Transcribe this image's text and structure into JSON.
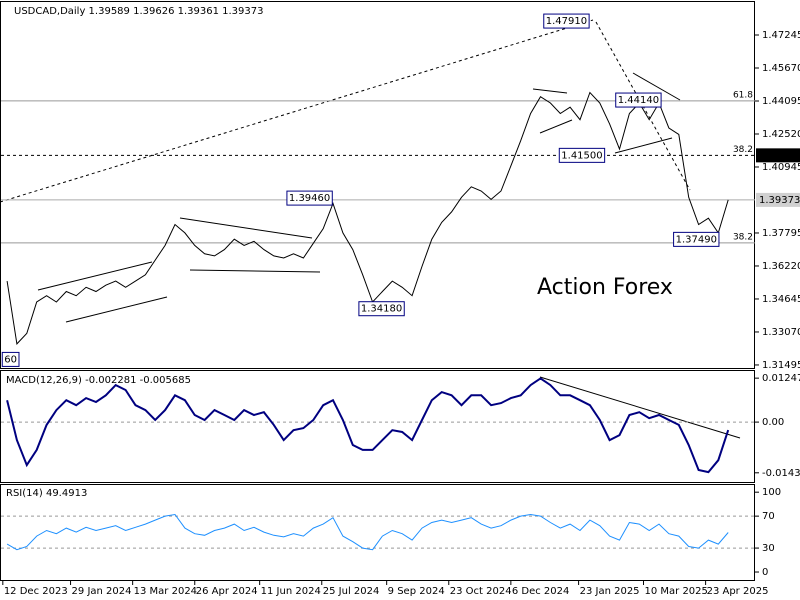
{
  "chart_data": [
    {
      "type": "line",
      "title": "USDCAD,Daily 1.39589 1.39626 1.39361 1.39373",
      "watermark": "Action Forex",
      "color": "#000000",
      "x": [
        "2023-12-15",
        "2023-12-22",
        "2023-12-29",
        "2024-01-05",
        "2024-01-12",
        "2024-01-19",
        "2024-01-26",
        "2024-02-02",
        "2024-02-09",
        "2024-02-16",
        "2024-02-23",
        "2024-03-01",
        "2024-03-08",
        "2024-03-15",
        "2024-03-22",
        "2024-03-29",
        "2024-04-05",
        "2024-04-12",
        "2024-04-19",
        "2024-04-26",
        "2024-05-03",
        "2024-05-10",
        "2024-05-17",
        "2024-05-24",
        "2024-05-31",
        "2024-06-07",
        "2024-06-14",
        "2024-06-21",
        "2024-06-28",
        "2024-07-05",
        "2024-07-12",
        "2024-07-19",
        "2024-07-26",
        "2024-08-02",
        "2024-08-09",
        "2024-08-16",
        "2024-08-23",
        "2024-08-30",
        "2024-09-06",
        "2024-09-13",
        "2024-09-20",
        "2024-09-27",
        "2024-10-04",
        "2024-10-11",
        "2024-10-18",
        "2024-10-25",
        "2024-11-01",
        "2024-11-08",
        "2024-11-15",
        "2024-11-22",
        "2024-11-29",
        "2024-12-06",
        "2024-12-13",
        "2024-12-20",
        "2024-12-27",
        "2025-01-03",
        "2025-01-10",
        "2025-01-17",
        "2025-01-24",
        "2025-01-31",
        "2025-02-07",
        "2025-02-14",
        "2025-02-21",
        "2025-02-28",
        "2025-03-07",
        "2025-03-14",
        "2025-03-21",
        "2025-03-28",
        "2025-04-04",
        "2025-04-11",
        "2025-04-18",
        "2025-04-25",
        "2025-05-02",
        "2025-05-09"
      ],
      "values": [
        1.355,
        1.325,
        1.33,
        1.345,
        1.348,
        1.345,
        1.35,
        1.348,
        1.352,
        1.35,
        1.353,
        1.355,
        1.352,
        1.355,
        1.358,
        1.365,
        1.372,
        1.382,
        1.378,
        1.372,
        1.368,
        1.367,
        1.37,
        1.375,
        1.372,
        1.374,
        1.37,
        1.367,
        1.366,
        1.368,
        1.366,
        1.373,
        1.38,
        1.392,
        1.378,
        1.37,
        1.358,
        1.345,
        1.35,
        1.355,
        1.352,
        1.348,
        1.362,
        1.375,
        1.383,
        1.388,
        1.395,
        1.4,
        1.398,
        1.394,
        1.398,
        1.41,
        1.422,
        1.435,
        1.443,
        1.44,
        1.435,
        1.438,
        1.432,
        1.445,
        1.44,
        1.43,
        1.418,
        1.435,
        1.44,
        1.432,
        1.44,
        1.428,
        1.425,
        1.395,
        1.382,
        1.385,
        1.378,
        1.39373
      ],
      "xlim": [
        "2023-12-10",
        "2025-05-28"
      ],
      "xticks": [
        {
          "value": "2023-12-12",
          "label": "12 Dec 2023"
        },
        {
          "value": "2024-01-29",
          "label": "29 Jan 2024"
        },
        {
          "value": "2024-03-13",
          "label": "13 Mar 2024"
        },
        {
          "value": "2024-04-26",
          "label": "26 Apr 2024"
        },
        {
          "value": "2024-06-11",
          "label": "11 Jun 2024"
        },
        {
          "value": "2024-07-25",
          "label": "25 Jul 2024"
        },
        {
          "value": "2024-09-09",
          "label": "9 Sep 2024"
        },
        {
          "value": "2024-10-23",
          "label": "23 Oct 2024"
        },
        {
          "value": "2024-12-06",
          "label": "6 Dec 2024"
        },
        {
          "value": "2025-01-23",
          "label": "23 Jan 2025"
        },
        {
          "value": "2025-03-10",
          "label": "10 Mar 2025"
        },
        {
          "value": "2025-04-23",
          "label": "23 Apr 2025"
        }
      ],
      "ylim": [
        1.3135,
        1.4882
      ],
      "yticks": [
        1.47245,
        {
          "value": 1.4567,
          "label": "1.45670"
        },
        1.44095,
        {
          "value": 1.4252,
          "label": "1.42520"
        },
        1.40945,
        1.37795,
        {
          "value": 1.3622,
          "label": "1.36220"
        },
        1.34645,
        {
          "value": 1.3307,
          "label": "1.33070"
        },
        1.31495
      ],
      "annotations": [
        {
          "label": "1.47910",
          "value": 1.4791,
          "x": "2025-02-03"
        },
        {
          "label": "1.41500",
          "value": 1.415,
          "x": "2025-02-14"
        },
        {
          "label": "1.44140",
          "value": 1.4414,
          "x": "2025-03-26"
        },
        {
          "label": "1.39460",
          "value": 1.3946,
          "x": "2024-08-05"
        },
        {
          "label": "1.34180",
          "value": 1.3418,
          "x": "2024-09-25"
        },
        {
          "label": "1.37490",
          "value": 1.3749,
          "x": "2025-05-06"
        },
        {
          "label": "60",
          "value": 1.3176,
          "x": "2023-12-27"
        }
      ],
      "fib_levels": [
        {
          "level": 61.8,
          "value": 1.441,
          "dashed": false
        },
        {
          "level": 38.2,
          "value": 1.415,
          "dashed": true
        },
        {
          "level": 38.2,
          "value": 1.3732,
          "dashed": false
        }
      ],
      "price_boxes": [
        {
          "label": "1.41500",
          "value": 1.415,
          "color": "#000000"
        },
        {
          "label": "1.39373",
          "value": 1.39373,
          "color": "#d0d0d0"
        }
      ]
    },
    {
      "type": "line",
      "title": "MACD(12,26,9) -0.002281 -0.005685",
      "color": "#000080",
      "values": [
        0.0062,
        -0.0051,
        -0.0122,
        -0.0079,
        -0.0008,
        0.0034,
        0.0062,
        0.0048,
        0.0068,
        0.0057,
        0.0076,
        0.0105,
        0.0091,
        0.0048,
        0.0034,
        0.0006,
        0.0034,
        0.0076,
        0.0062,
        0.002,
        0.0006,
        0.0034,
        0.002,
        0.0006,
        0.0034,
        0.002,
        0.0028,
        -0.0008,
        -0.0051,
        -0.0023,
        -0.0017,
        0.0006,
        0.0048,
        0.0062,
        0.0006,
        -0.0065,
        -0.0079,
        -0.0079,
        -0.0051,
        -0.0023,
        -0.0028,
        -0.0051,
        0.0006,
        0.0062,
        0.0085,
        0.0076,
        0.0048,
        0.0076,
        0.0076,
        0.0048,
        0.0054,
        0.0068,
        0.0076,
        0.0105,
        0.0124,
        0.0105,
        0.0076,
        0.0076,
        0.0062,
        0.0048,
        0.0006,
        -0.0051,
        -0.0037,
        0.002,
        0.0028,
        0.0011,
        0.002,
        0.0006,
        -0.0008,
        -0.0065,
        -0.0136,
        -0.0142,
        -0.0108,
        -0.002281
      ],
      "ylim": [
        -0.017,
        0.0145
      ],
      "yticks": [
        0.012472,
        {
          "value": 0,
          "label": "0.00"
        },
        -0.014389
      ],
      "levels": [
        0
      ]
    },
    {
      "type": "line",
      "title": "RSI(14) 49.4913",
      "color": "#1e90ff",
      "values": [
        35,
        28,
        32,
        45,
        52,
        48,
        55,
        50,
        56,
        52,
        55,
        58,
        52,
        56,
        60,
        65,
        70,
        72,
        55,
        48,
        46,
        52,
        55,
        60,
        52,
        56,
        50,
        46,
        44,
        48,
        45,
        55,
        60,
        68,
        45,
        38,
        30,
        28,
        45,
        52,
        48,
        40,
        55,
        62,
        65,
        62,
        65,
        68,
        60,
        55,
        58,
        65,
        70,
        72,
        70,
        62,
        55,
        60,
        52,
        65,
        58,
        45,
        40,
        62,
        60,
        52,
        60,
        48,
        45,
        32,
        30,
        40,
        35,
        49.4913
      ],
      "ylim": [
        -10,
        109
      ],
      "yticks": [
        100,
        70,
        30,
        0
      ],
      "levels": [
        70,
        30
      ]
    }
  ]
}
